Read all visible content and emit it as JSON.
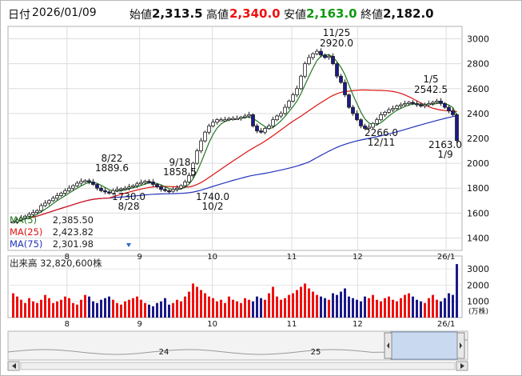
{
  "header": {
    "date_label": "日付",
    "date": "2026/01/09",
    "open_label": "始値",
    "open": "2,313.5",
    "high_label": "高値",
    "high": "2,340.0",
    "low_label": "安値",
    "low": "2,163.0",
    "close_label": "終値",
    "close": "2,182.0"
  },
  "colors": {
    "high": "#ee1111",
    "low": "#119911",
    "ma5": "#227722",
    "ma25": "#dd1111",
    "ma75": "#2233bb",
    "volume_up": "#ee1111",
    "volume_down": "#1a1a88",
    "candle_down": "#1a1a88"
  },
  "legend": [
    {
      "label": "MA(5)",
      "value": "2,385.50",
      "color": "#227722"
    },
    {
      "label": "MA(25)",
      "value": "2,423.82",
      "color": "#dd1111"
    },
    {
      "label": "MA(75)",
      "value": "2,301.98",
      "color": "#2233bb"
    }
  ],
  "volume_label": "出来高",
  "volume_value": "32,820,600株",
  "volume_unit": "(万株)",
  "navigator_labels": [
    "24",
    "25"
  ],
  "chart_data": {
    "type": "candlestick",
    "price_axis": {
      "ticks": [
        1400,
        1600,
        1800,
        2000,
        2200,
        2400,
        2600,
        2800,
        3000
      ],
      "range": [
        1300,
        3100
      ]
    },
    "volume_axis": {
      "ticks": [
        1000,
        2000,
        3000
      ],
      "unit": "万株"
    },
    "x_ticks": [
      "8",
      "9",
      "10",
      "11",
      "12",
      "26/1"
    ],
    "annotations": [
      {
        "text": "8/22",
        "value": "1889.6"
      },
      {
        "text": "8/28",
        "value": "1730.0"
      },
      {
        "text": "9/18",
        "value": "1858.5"
      },
      {
        "text": "10/2",
        "value": "1740.0"
      },
      {
        "text": "11/25",
        "value": "2920.0"
      },
      {
        "text": "12/11",
        "value": "2266.0"
      },
      {
        "text": "1/5",
        "value": "2542.5"
      },
      {
        "text": "1/9",
        "value": "2163.0"
      }
    ],
    "close_series": [
      1530,
      1545,
      1560,
      1575,
      1590,
      1605,
      1620,
      1660,
      1680,
      1700,
      1720,
      1740,
      1760,
      1780,
      1800,
      1820,
      1840,
      1855,
      1860,
      1850,
      1830,
      1800,
      1780,
      1770,
      1760,
      1780,
      1790,
      1795,
      1800,
      1810,
      1820,
      1835,
      1845,
      1855,
      1850,
      1830,
      1810,
      1790,
      1780,
      1775,
      1790,
      1800,
      1820,
      1850,
      1900,
      2000,
      2100,
      2180,
      2250,
      2300,
      2330,
      2350,
      2350,
      2350,
      2360,
      2360,
      2360,
      2370,
      2380,
      2390,
      2300,
      2260,
      2250,
      2280,
      2300,
      2350,
      2380,
      2400,
      2450,
      2500,
      2550,
      2600,
      2700,
      2800,
      2850,
      2880,
      2900,
      2870,
      2850,
      2860,
      2800,
      2700,
      2650,
      2550,
      2450,
      2400,
      2350,
      2300,
      2280,
      2290,
      2320,
      2350,
      2390,
      2410,
      2430,
      2440,
      2460,
      2470,
      2480,
      2490,
      2480,
      2470,
      2460,
      2470,
      2480,
      2490,
      2500,
      2480,
      2450,
      2420,
      2390,
      2182
    ],
    "volume_series": [
      1500,
      1300,
      1100,
      900,
      1200,
      1000,
      900,
      1100,
      1400,
      1200,
      900,
      1000,
      1100,
      1300,
      1200,
      900,
      800,
      1100,
      1400,
      1300,
      1000,
      900,
      1100,
      1200,
      1300,
      1100,
      900,
      800,
      1000,
      1100,
      1200,
      1300,
      1100,
      900,
      800,
      700,
      900,
      1000,
      1200,
      800,
      900,
      1100,
      1000,
      1300,
      1600,
      2100,
      1900,
      1700,
      1500,
      1300,
      1200,
      1000,
      1100,
      900,
      1300,
      1100,
      1000,
      900,
      1200,
      1100,
      1000,
      1300,
      1200,
      1100,
      1500,
      1900,
      1300,
      1100,
      1200,
      1400,
      1500,
      1700,
      1900,
      2100,
      1800,
      1600,
      1400,
      1300,
      1200,
      1100,
      1500,
      1400,
      1600,
      1800,
      1300,
      1200,
      1100,
      1000,
      1300,
      1200,
      1400,
      1100,
      1000,
      1200,
      1300,
      1100,
      1000,
      1200,
      1400,
      1500,
      1300,
      1100,
      1000,
      900,
      1200,
      1400,
      1100,
      1000,
      1200,
      1500,
      1400,
      3300
    ]
  }
}
